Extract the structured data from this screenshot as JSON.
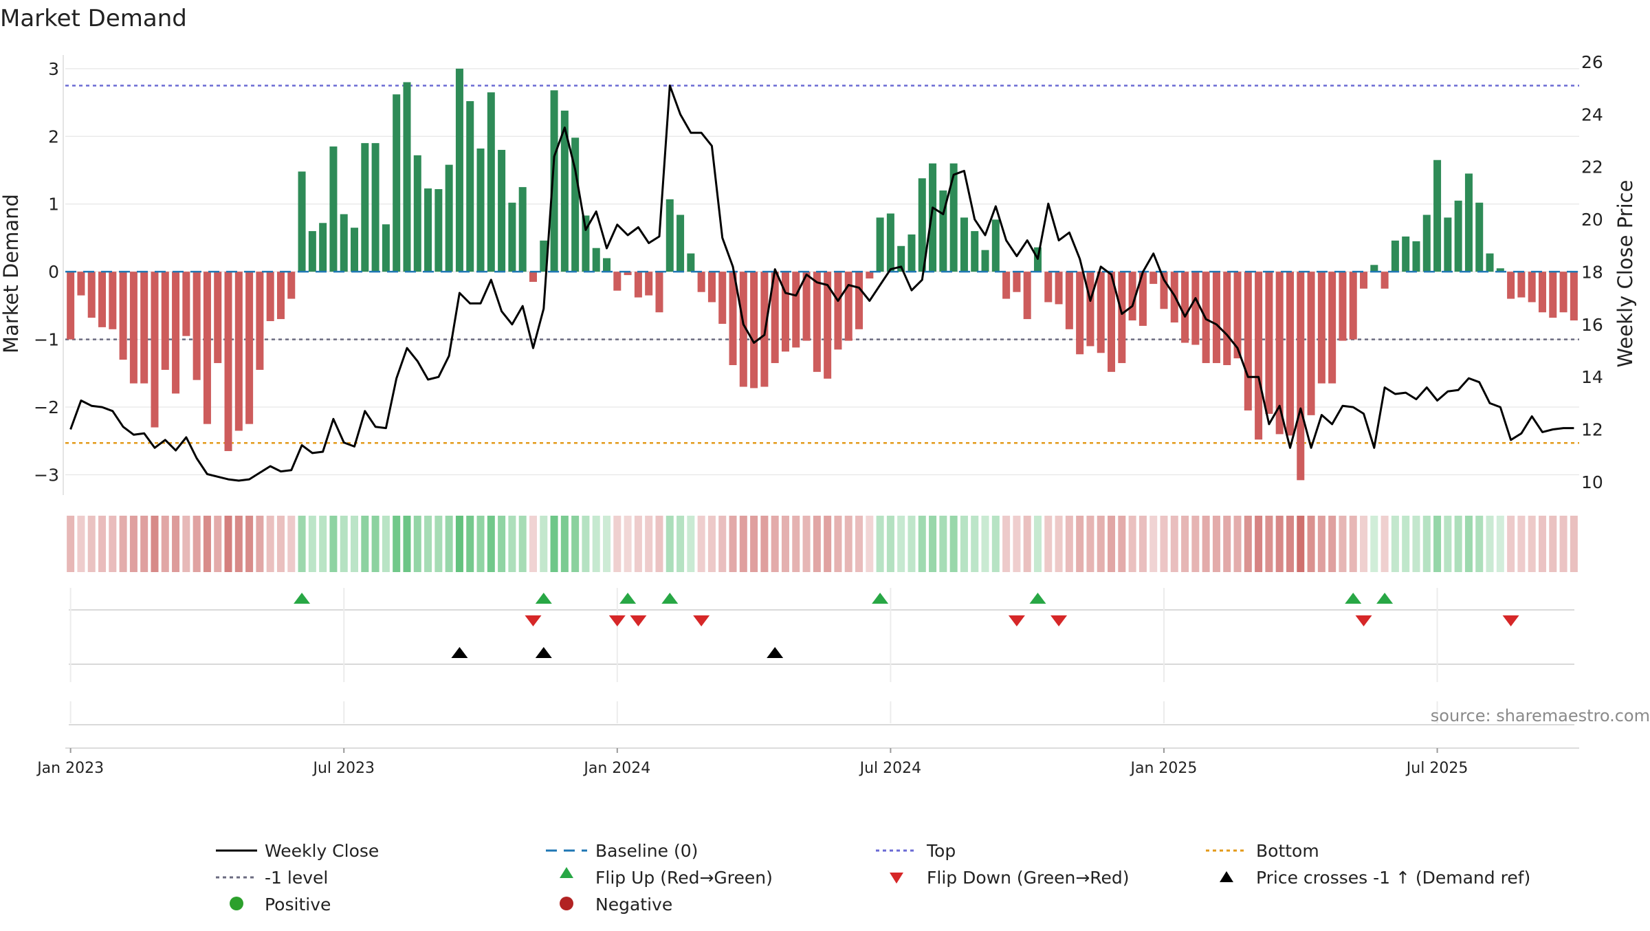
{
  "chart_data": {
    "type": "bar",
    "title": "Market Demand",
    "ylabel_left": "Market Demand",
    "ylabel_right": "Weekly Close Price",
    "ylim_left": [
      -3.3,
      3.1
    ],
    "ylim_right": [
      9.5,
      26
    ],
    "yticks_left": [
      3,
      2,
      1,
      0,
      -1,
      -2,
      -3
    ],
    "ytick_labels_left": [
      "3",
      "2",
      "1",
      "0",
      "−1",
      "−2",
      "−3"
    ],
    "yticks_right": [
      26,
      24,
      22,
      20,
      18,
      16,
      14,
      12,
      10
    ],
    "ytick_labels_right": [
      "26",
      "24",
      "22",
      "20",
      "18",
      "16",
      "14",
      "12",
      "10"
    ],
    "xticks_week_index": [
      0.5,
      26.5,
      52.5,
      78.5,
      104.5,
      130.5
    ],
    "xtick_labels": [
      "Jan 2023",
      "Jul 2023",
      "Jan 2024",
      "Jul 2024",
      "Jan 2025",
      "Jul 2025"
    ],
    "reference_lines": {
      "baseline": 0,
      "top": 2.75,
      "minus_one": -1,
      "bottom": -2.53
    },
    "demand": [
      -1.0,
      -0.35,
      -0.68,
      -0.82,
      -0.85,
      -1.3,
      -1.65,
      -1.65,
      -2.3,
      -1.45,
      -1.8,
      -0.95,
      -1.6,
      -2.25,
      -1.35,
      -2.65,
      -2.35,
      -2.25,
      -1.45,
      -0.73,
      -0.7,
      -0.4,
      1.48,
      0.6,
      0.72,
      1.85,
      0.85,
      0.65,
      1.9,
      1.9,
      0.7,
      2.62,
      2.8,
      1.72,
      1.23,
      1.22,
      1.58,
      3.0,
      2.52,
      1.82,
      2.65,
      1.8,
      1.02,
      1.25,
      -0.15,
      0.46,
      2.68,
      2.38,
      1.98,
      0.83,
      0.35,
      0.2,
      -0.28,
      -0.05,
      -0.38,
      -0.35,
      -0.6,
      1.07,
      0.84,
      0.27,
      -0.3,
      -0.45,
      -0.77,
      -1.38,
      -1.7,
      -1.72,
      -1.7,
      -1.35,
      -1.18,
      -1.12,
      -1.02,
      -1.48,
      -1.58,
      -1.15,
      -1.02,
      -0.85,
      -0.1,
      0.8,
      0.86,
      0.38,
      0.55,
      1.38,
      1.6,
      1.2,
      1.6,
      0.8,
      0.6,
      0.32,
      0.77,
      -0.4,
      -0.3,
      -0.7,
      0.36,
      -0.45,
      -0.48,
      -0.85,
      -1.22,
      -1.1,
      -1.2,
      -1.48,
      -1.35,
      -0.72,
      -0.8,
      -0.18,
      -0.55,
      -0.75,
      -1.05,
      -1.08,
      -1.35,
      -1.35,
      -1.38,
      -1.28,
      -2.05,
      -2.48,
      -2.1,
      -2.4,
      -2.42,
      -3.08,
      -2.12,
      -1.65,
      -1.65,
      -1.02,
      -1.0,
      -0.25,
      0.1,
      -0.25,
      0.46,
      0.52,
      0.45,
      0.84,
      1.65,
      0.8,
      1.05,
      1.45,
      1.02,
      0.27,
      0.05,
      -0.4,
      -0.38,
      -0.45,
      -0.6,
      -0.68,
      -0.6,
      -0.72
    ],
    "weekly_close": [
      12.0,
      13.1,
      12.9,
      12.85,
      12.7,
      12.1,
      11.8,
      11.85,
      11.3,
      11.6,
      11.2,
      11.7,
      10.9,
      10.3,
      10.2,
      10.1,
      10.05,
      10.1,
      10.35,
      10.6,
      10.4,
      10.45,
      11.4,
      11.1,
      11.15,
      12.4,
      11.5,
      11.35,
      12.7,
      12.1,
      12.05,
      13.95,
      15.1,
      14.6,
      13.9,
      14.0,
      14.8,
      17.2,
      16.8,
      16.8,
      17.7,
      16.5,
      16.0,
      16.7,
      15.1,
      16.6,
      22.4,
      23.5,
      21.9,
      19.6,
      20.3,
      18.9,
      19.8,
      19.4,
      19.7,
      19.1,
      19.35,
      25.1,
      24.0,
      23.3,
      23.3,
      22.8,
      19.3,
      18.2,
      16.0,
      15.3,
      15.6,
      18.1,
      17.2,
      17.1,
      17.9,
      17.6,
      17.5,
      16.9,
      17.5,
      17.4,
      16.9,
      17.5,
      18.1,
      18.2,
      17.3,
      17.7,
      20.45,
      20.2,
      21.7,
      21.85,
      20.0,
      19.4,
      20.5,
      19.2,
      18.6,
      19.2,
      18.5,
      20.6,
      19.2,
      19.5,
      18.5,
      16.9,
      18.2,
      17.9,
      16.4,
      16.7,
      18.0,
      18.7,
      17.7,
      17.1,
      16.3,
      17.0,
      16.2,
      16.0,
      15.6,
      15.1,
      14.0,
      14.0,
      12.2,
      12.9,
      11.3,
      12.8,
      11.3,
      12.55,
      12.2,
      12.9,
      12.85,
      12.6,
      11.3,
      13.6,
      13.35,
      13.4,
      13.15,
      13.6,
      13.1,
      13.45,
      13.5,
      13.95,
      13.8,
      13.0,
      12.85,
      11.6,
      11.85,
      12.5,
      11.9,
      12.0,
      12.05,
      12.05
    ],
    "flip_up_weeks": [
      22,
      45,
      53,
      57,
      77,
      92,
      122,
      125
    ],
    "flip_down_weeks": [
      44,
      52,
      54,
      60,
      90,
      94,
      123,
      137
    ],
    "price_cross_up_weeks": [
      37,
      45,
      67
    ],
    "legend": [
      "Weekly Close",
      "Baseline (0)",
      "Top",
      "Bottom",
      "-1 level",
      "Flip Up (Red→Green)",
      "Flip Down (Green→Red)",
      "Price crosses -1 ↑ (Demand ref)",
      "Positive",
      "Negative"
    ],
    "legend_placement": "bottom",
    "source": "source: sharemaestro.com"
  },
  "colors": {
    "positive": "#2e8b57",
    "negative": "#cd5c5c",
    "close": "#000000",
    "baseline": "#1f77b4",
    "top": "#6a6ad4",
    "bottom": "#e39a1a",
    "minus_one": "#6b6b80",
    "flip_up": "#28a745",
    "flip_down": "#d62728",
    "cross": "#000000",
    "legend_positive": "#2ca02c",
    "legend_negative": "#b22222",
    "grid": "#e6e6e6"
  }
}
